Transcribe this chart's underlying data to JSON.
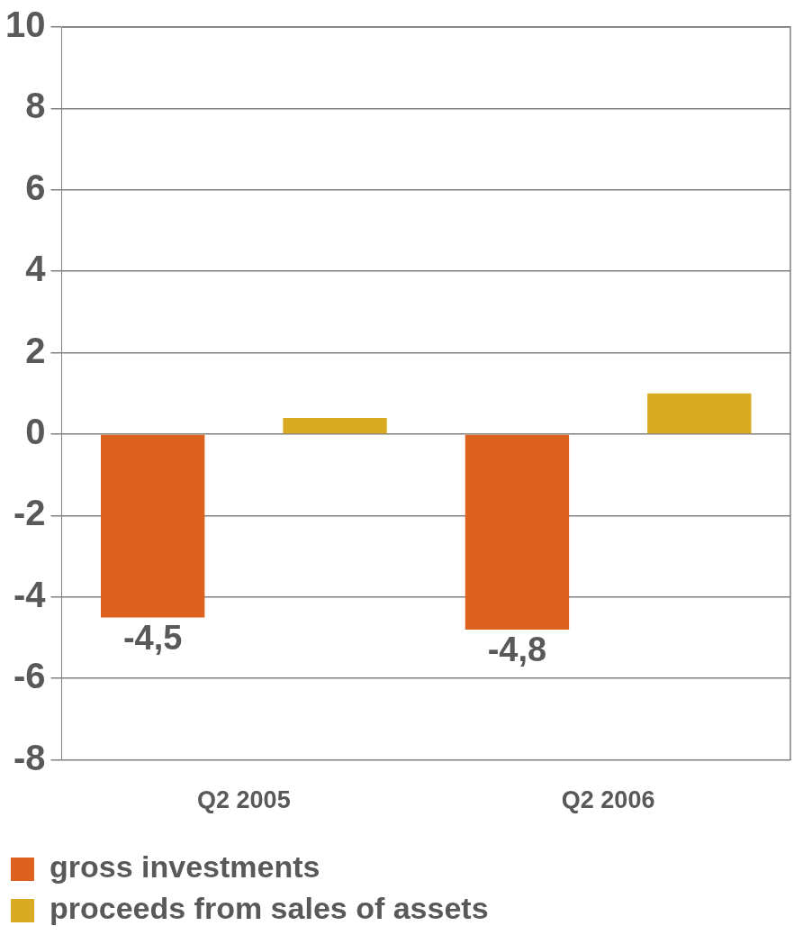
{
  "chart_data": {
    "type": "bar",
    "categories": [
      "Q2 2005",
      "Q2 2006"
    ],
    "series": [
      {
        "name": "gross investments",
        "color": "#dd6220",
        "values": [
          -4.5,
          -4.8
        ],
        "value_labels": [
          "-4,5",
          "-4,8"
        ]
      },
      {
        "name": "proceeds from sales of assets",
        "color": "#d9ab22",
        "values": [
          0.4,
          1.0
        ]
      }
    ],
    "ylim": [
      -8,
      10
    ],
    "yticks": [
      -8,
      -6,
      -4,
      -2,
      0,
      2,
      4,
      6,
      8,
      10
    ],
    "grid": "y",
    "legend": "bottom"
  }
}
